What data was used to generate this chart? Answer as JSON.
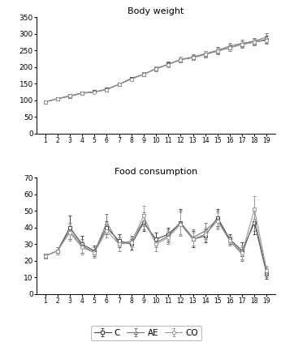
{
  "weeks": [
    1,
    2,
    3,
    4,
    5,
    6,
    7,
    8,
    9,
    10,
    11,
    12,
    13,
    14,
    15,
    16,
    17,
    18,
    19
  ],
  "bw_C": [
    95,
    105,
    113,
    122,
    125,
    133,
    148,
    165,
    178,
    195,
    208,
    222,
    228,
    238,
    248,
    258,
    268,
    275,
    283
  ],
  "bw_AE": [
    95,
    104,
    112,
    121,
    125,
    132,
    148,
    165,
    178,
    195,
    208,
    223,
    230,
    240,
    250,
    263,
    271,
    278,
    290
  ],
  "bw_CO": [
    95,
    105,
    113,
    121,
    124,
    132,
    148,
    163,
    178,
    194,
    207,
    222,
    228,
    238,
    248,
    258,
    268,
    275,
    280
  ],
  "bw_err_C": [
    3,
    3,
    4,
    4,
    4,
    5,
    5,
    6,
    6,
    7,
    7,
    8,
    8,
    9,
    9,
    10,
    10,
    10,
    11
  ],
  "bw_err_AE": [
    3,
    3,
    4,
    4,
    4,
    5,
    5,
    6,
    6,
    7,
    7,
    8,
    8,
    9,
    9,
    10,
    10,
    10,
    12
  ],
  "bw_err_CO": [
    3,
    3,
    4,
    4,
    4,
    5,
    5,
    6,
    6,
    7,
    7,
    8,
    8,
    9,
    9,
    10,
    10,
    10,
    11
  ],
  "fc_C": [
    23,
    26,
    40,
    30,
    26,
    40,
    32,
    30,
    43,
    33,
    36,
    43,
    33,
    35,
    46,
    33,
    26,
    43,
    12
  ],
  "fc_AE": [
    23,
    26,
    38,
    29,
    25,
    43,
    30,
    32,
    44,
    31,
    35,
    43,
    34,
    38,
    45,
    32,
    24,
    45,
    13
  ],
  "fc_CO": [
    23,
    26,
    37,
    28,
    25,
    38,
    30,
    31,
    47,
    30,
    34,
    42,
    33,
    36,
    44,
    32,
    25,
    51,
    14
  ],
  "fc_err_C": [
    1.5,
    2,
    7,
    5,
    3,
    4,
    4,
    3,
    5,
    4,
    4,
    8,
    5,
    4,
    5,
    3,
    5,
    7,
    3
  ],
  "fc_err_AE": [
    1.5,
    2,
    5,
    4,
    3,
    5,
    4,
    3,
    5,
    3,
    4,
    7,
    5,
    5,
    5,
    3,
    4,
    7,
    3
  ],
  "fc_err_CO": [
    1.5,
    2,
    5,
    4,
    3,
    4,
    4,
    3,
    6,
    4,
    4,
    7,
    4,
    4,
    5,
    3,
    4,
    8,
    3
  ],
  "title_bw": "Body weight",
  "title_fc": "Food consumption",
  "bw_ylim": [
    0,
    350
  ],
  "fc_ylim": [
    0,
    70
  ],
  "bw_yticks": [
    0,
    50,
    100,
    150,
    200,
    250,
    300,
    350
  ],
  "fc_yticks": [
    0,
    10,
    20,
    30,
    40,
    50,
    60,
    70
  ],
  "line_color_C": "#444444",
  "line_color_AE": "#777777",
  "line_color_CO": "#999999",
  "marker_C": "s",
  "marker_AE": "^",
  "marker_CO": "o",
  "legend_labels": [
    "C",
    "AE",
    "CO"
  ],
  "background_color": "#ffffff",
  "markersize": 3.0,
  "linewidth": 0.8,
  "capsize": 1.5,
  "elinewidth": 0.7
}
